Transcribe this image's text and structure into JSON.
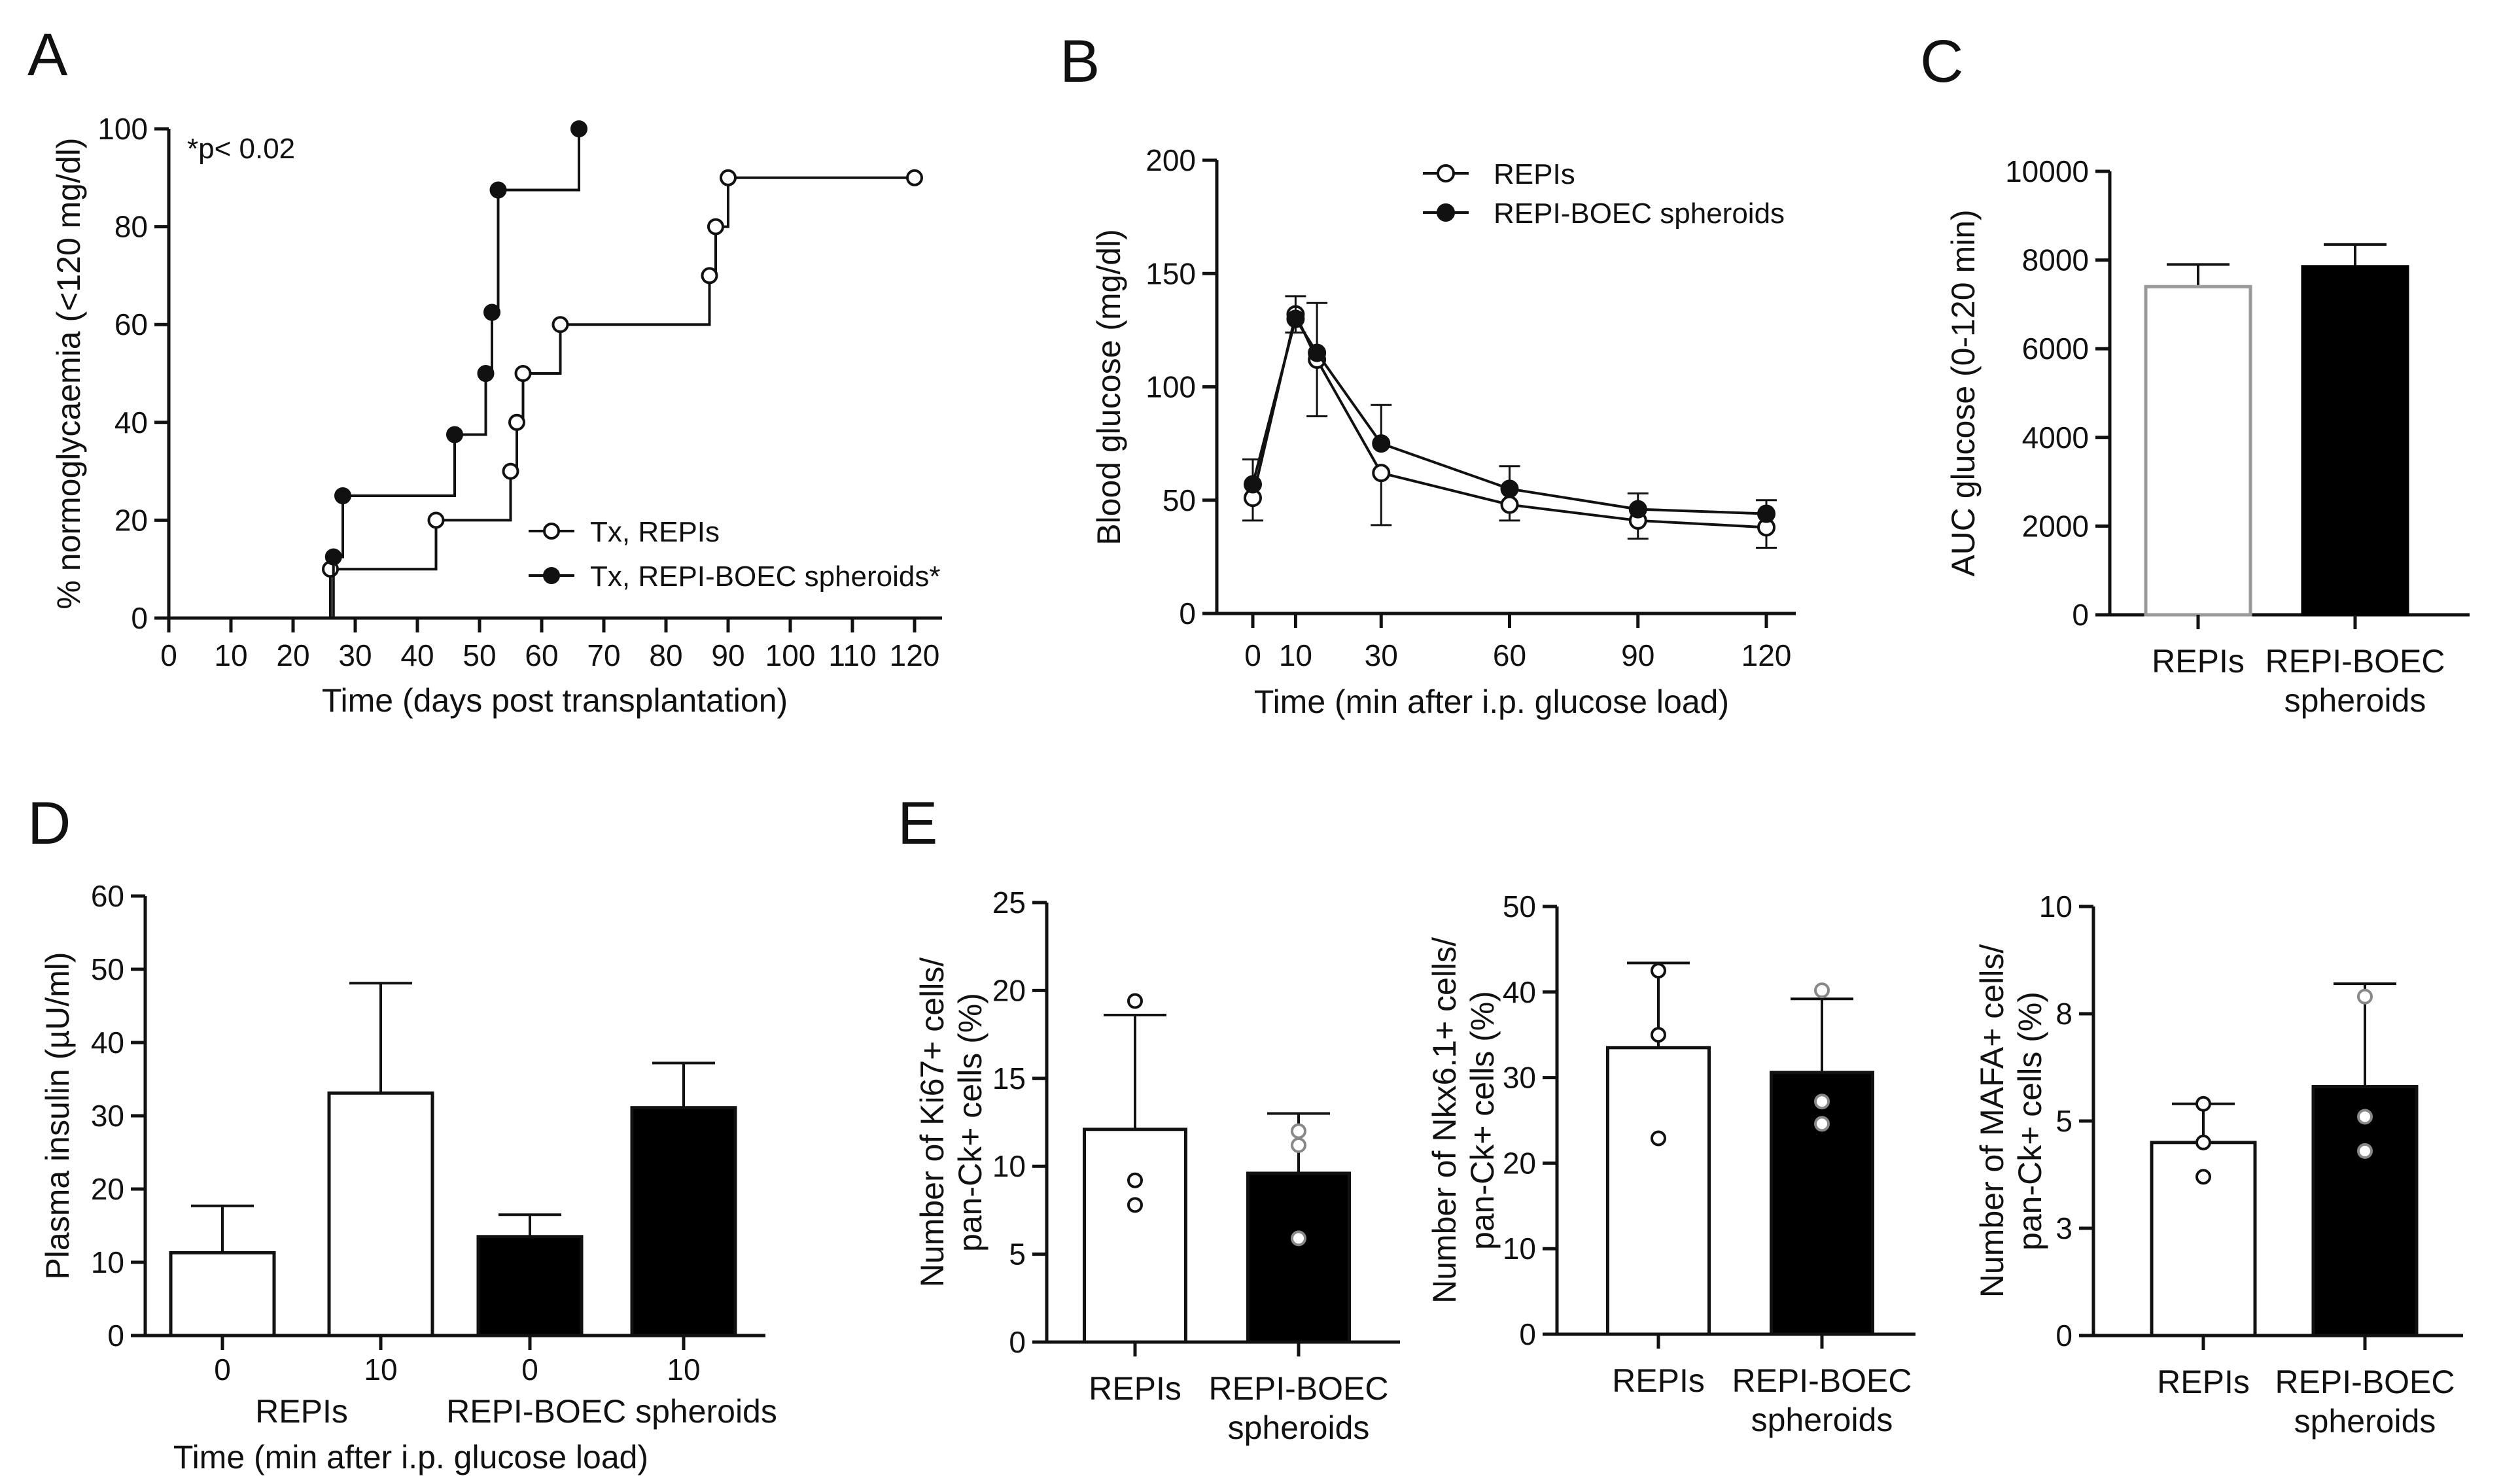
{
  "panels": {
    "A": "A",
    "B": "B",
    "C": "C",
    "D": "D",
    "E": "E"
  },
  "chart_data": [
    {
      "id": "A",
      "type": "line",
      "step": true,
      "annotation": "*p< 0.02",
      "xlabel": "Time (days post transplantation)",
      "ylabel": "% normoglycaemia (<120 mg/dl)",
      "xlim": [
        0,
        125
      ],
      "ylim": [
        0,
        100
      ],
      "xticks": [
        0,
        10,
        20,
        30,
        40,
        50,
        60,
        70,
        80,
        90,
        100,
        110,
        120
      ],
      "yticks": [
        0,
        20,
        40,
        60,
        80,
        100
      ],
      "legend_position": "bottom-right",
      "series": [
        {
          "name": "Tx, REPIs",
          "marker": "open-circle",
          "points": [
            [
              26,
              10
            ],
            [
              43,
              20
            ],
            [
              55,
              30
            ],
            [
              56,
              40
            ],
            [
              57,
              50
            ],
            [
              63,
              60
            ],
            [
              87,
              70
            ],
            [
              88,
              80
            ],
            [
              90,
              90
            ],
            [
              120,
              90
            ]
          ]
        },
        {
          "name": "Tx, REPI-BOEC spheroids*",
          "marker": "filled-circle",
          "points": [
            [
              26.5,
              12.5
            ],
            [
              28,
              25
            ],
            [
              46,
              37.5
            ],
            [
              51,
              50
            ],
            [
              52,
              62.5
            ],
            [
              53,
              87.5
            ],
            [
              66,
              100
            ]
          ]
        }
      ]
    },
    {
      "id": "B",
      "type": "line",
      "xlabel": "Time (min after i.p. glucose load)",
      "ylabel": "Blood glucose (mg/dl)",
      "xlim": [
        -8,
        125
      ],
      "ylim": [
        0,
        200
      ],
      "xticks": [
        0,
        10,
        30,
        60,
        90,
        120
      ],
      "yticks": [
        0,
        50,
        100,
        150,
        200
      ],
      "legend_position": "top-right",
      "series": [
        {
          "name": "REPIs",
          "marker": "open-circle",
          "x": [
            0,
            10,
            15,
            30,
            60,
            90,
            120
          ],
          "y": [
            51,
            132,
            112,
            62,
            48,
            41,
            38
          ],
          "err": [
            10,
            8,
            25,
            23,
            7,
            8,
            9
          ]
        },
        {
          "name": "REPI-BOEC spheroids",
          "marker": "filled-circle",
          "x": [
            0,
            10,
            15,
            30,
            60,
            90,
            120
          ],
          "y": [
            57,
            130,
            115,
            75,
            55,
            46,
            44
          ],
          "err": [
            11,
            10,
            22,
            17,
            10,
            7,
            6
          ]
        }
      ]
    },
    {
      "id": "C",
      "type": "bar",
      "ylabel": "AUC glucose (0-120 min)",
      "ylim": [
        0,
        10000
      ],
      "yticks": [
        0,
        2000,
        4000,
        6000,
        8000,
        10000
      ],
      "categories": [
        "REPIs",
        "REPI-BOEC spheroids"
      ],
      "category_lines": [
        [
          "REPIs"
        ],
        [
          "REPI-BOEC",
          "spheroids"
        ]
      ],
      "values": [
        7400,
        7850
      ],
      "errors": [
        500,
        500
      ],
      "fills": [
        "#ffffff",
        "#000000"
      ],
      "edges": [
        "#9a9a9a",
        "#000000"
      ]
    },
    {
      "id": "D",
      "type": "bar",
      "ylabel": "Plasma insulin (µU/ml)",
      "xlabel": "Time (min after i.p. glucose load)",
      "ylim": [
        0,
        60
      ],
      "yticks": [
        0,
        10,
        20,
        30,
        40,
        50,
        60
      ],
      "categories": [
        "0",
        "10",
        "0",
        "10"
      ],
      "groups": [
        "REPIs",
        "REPI-BOEC spheroids"
      ],
      "values": [
        11.3,
        33.1,
        13.5,
        31.1
      ],
      "errors": [
        6.4,
        15.0,
        3.0,
        6.1
      ],
      "fills": [
        "#ffffff",
        "#ffffff",
        "#000000",
        "#000000"
      ]
    },
    {
      "id": "E1",
      "type": "bar",
      "ylabel_lines": [
        "Number of Ki67+ cells/",
        "pan-Ck+ cells (%)"
      ],
      "ylim": [
        0,
        25
      ],
      "yticks": [
        0,
        5,
        10,
        15,
        20,
        25
      ],
      "categories": [
        "REPIs",
        "REPI-BOEC spheroids"
      ],
      "category_lines": [
        [
          "REPIs"
        ],
        [
          "REPI-BOEC",
          "spheroids"
        ]
      ],
      "values": [
        12.1,
        9.6
      ],
      "errors": [
        6.5,
        3.4
      ],
      "fills": [
        "#ffffff",
        "#000000"
      ],
      "points": [
        [
          19.4,
          9.2,
          7.8
        ],
        [
          12.0,
          11.2,
          5.9
        ]
      ]
    },
    {
      "id": "E2",
      "type": "bar",
      "ylabel_lines": [
        "Number of Nkx6.1+ cells/",
        "pan-Ck+ cells (%)"
      ],
      "ylim": [
        0,
        50
      ],
      "yticks": [
        0,
        10,
        20,
        30,
        40,
        50
      ],
      "categories": [
        "REPIs",
        "REPI-BOEC spheroids"
      ],
      "category_lines": [
        [
          "REPIs"
        ],
        [
          "REPI-BOEC",
          "spheroids"
        ]
      ],
      "values": [
        33.5,
        30.6
      ],
      "errors": [
        9.9,
        8.6
      ],
      "fills": [
        "#ffffff",
        "#000000"
      ],
      "points": [
        [
          42.5,
          35.0,
          22.9
        ],
        [
          40.2,
          27.2,
          24.6
        ]
      ]
    },
    {
      "id": "E3",
      "type": "bar",
      "ylabel_lines": [
        "Number of MAFA+ cells/",
        "pan-Ck+ cells (%)"
      ],
      "ylim": [
        0,
        10
      ],
      "yticks": [
        0,
        3,
        5,
        8,
        10
      ],
      "ytick_values": [
        0,
        2.5,
        5,
        7.5,
        10
      ],
      "categories": [
        "REPIs",
        "REPI-BOEC spheroids"
      ],
      "category_lines": [
        [
          "REPIs"
        ],
        [
          "REPI-BOEC",
          "spheroids"
        ]
      ],
      "values": [
        4.5,
        5.8
      ],
      "errors": [
        0.9,
        2.4
      ],
      "fills": [
        "#ffffff",
        "#000000"
      ],
      "points": [
        [
          5.4,
          4.5,
          3.7
        ],
        [
          7.9,
          5.1,
          4.3
        ]
      ]
    }
  ]
}
